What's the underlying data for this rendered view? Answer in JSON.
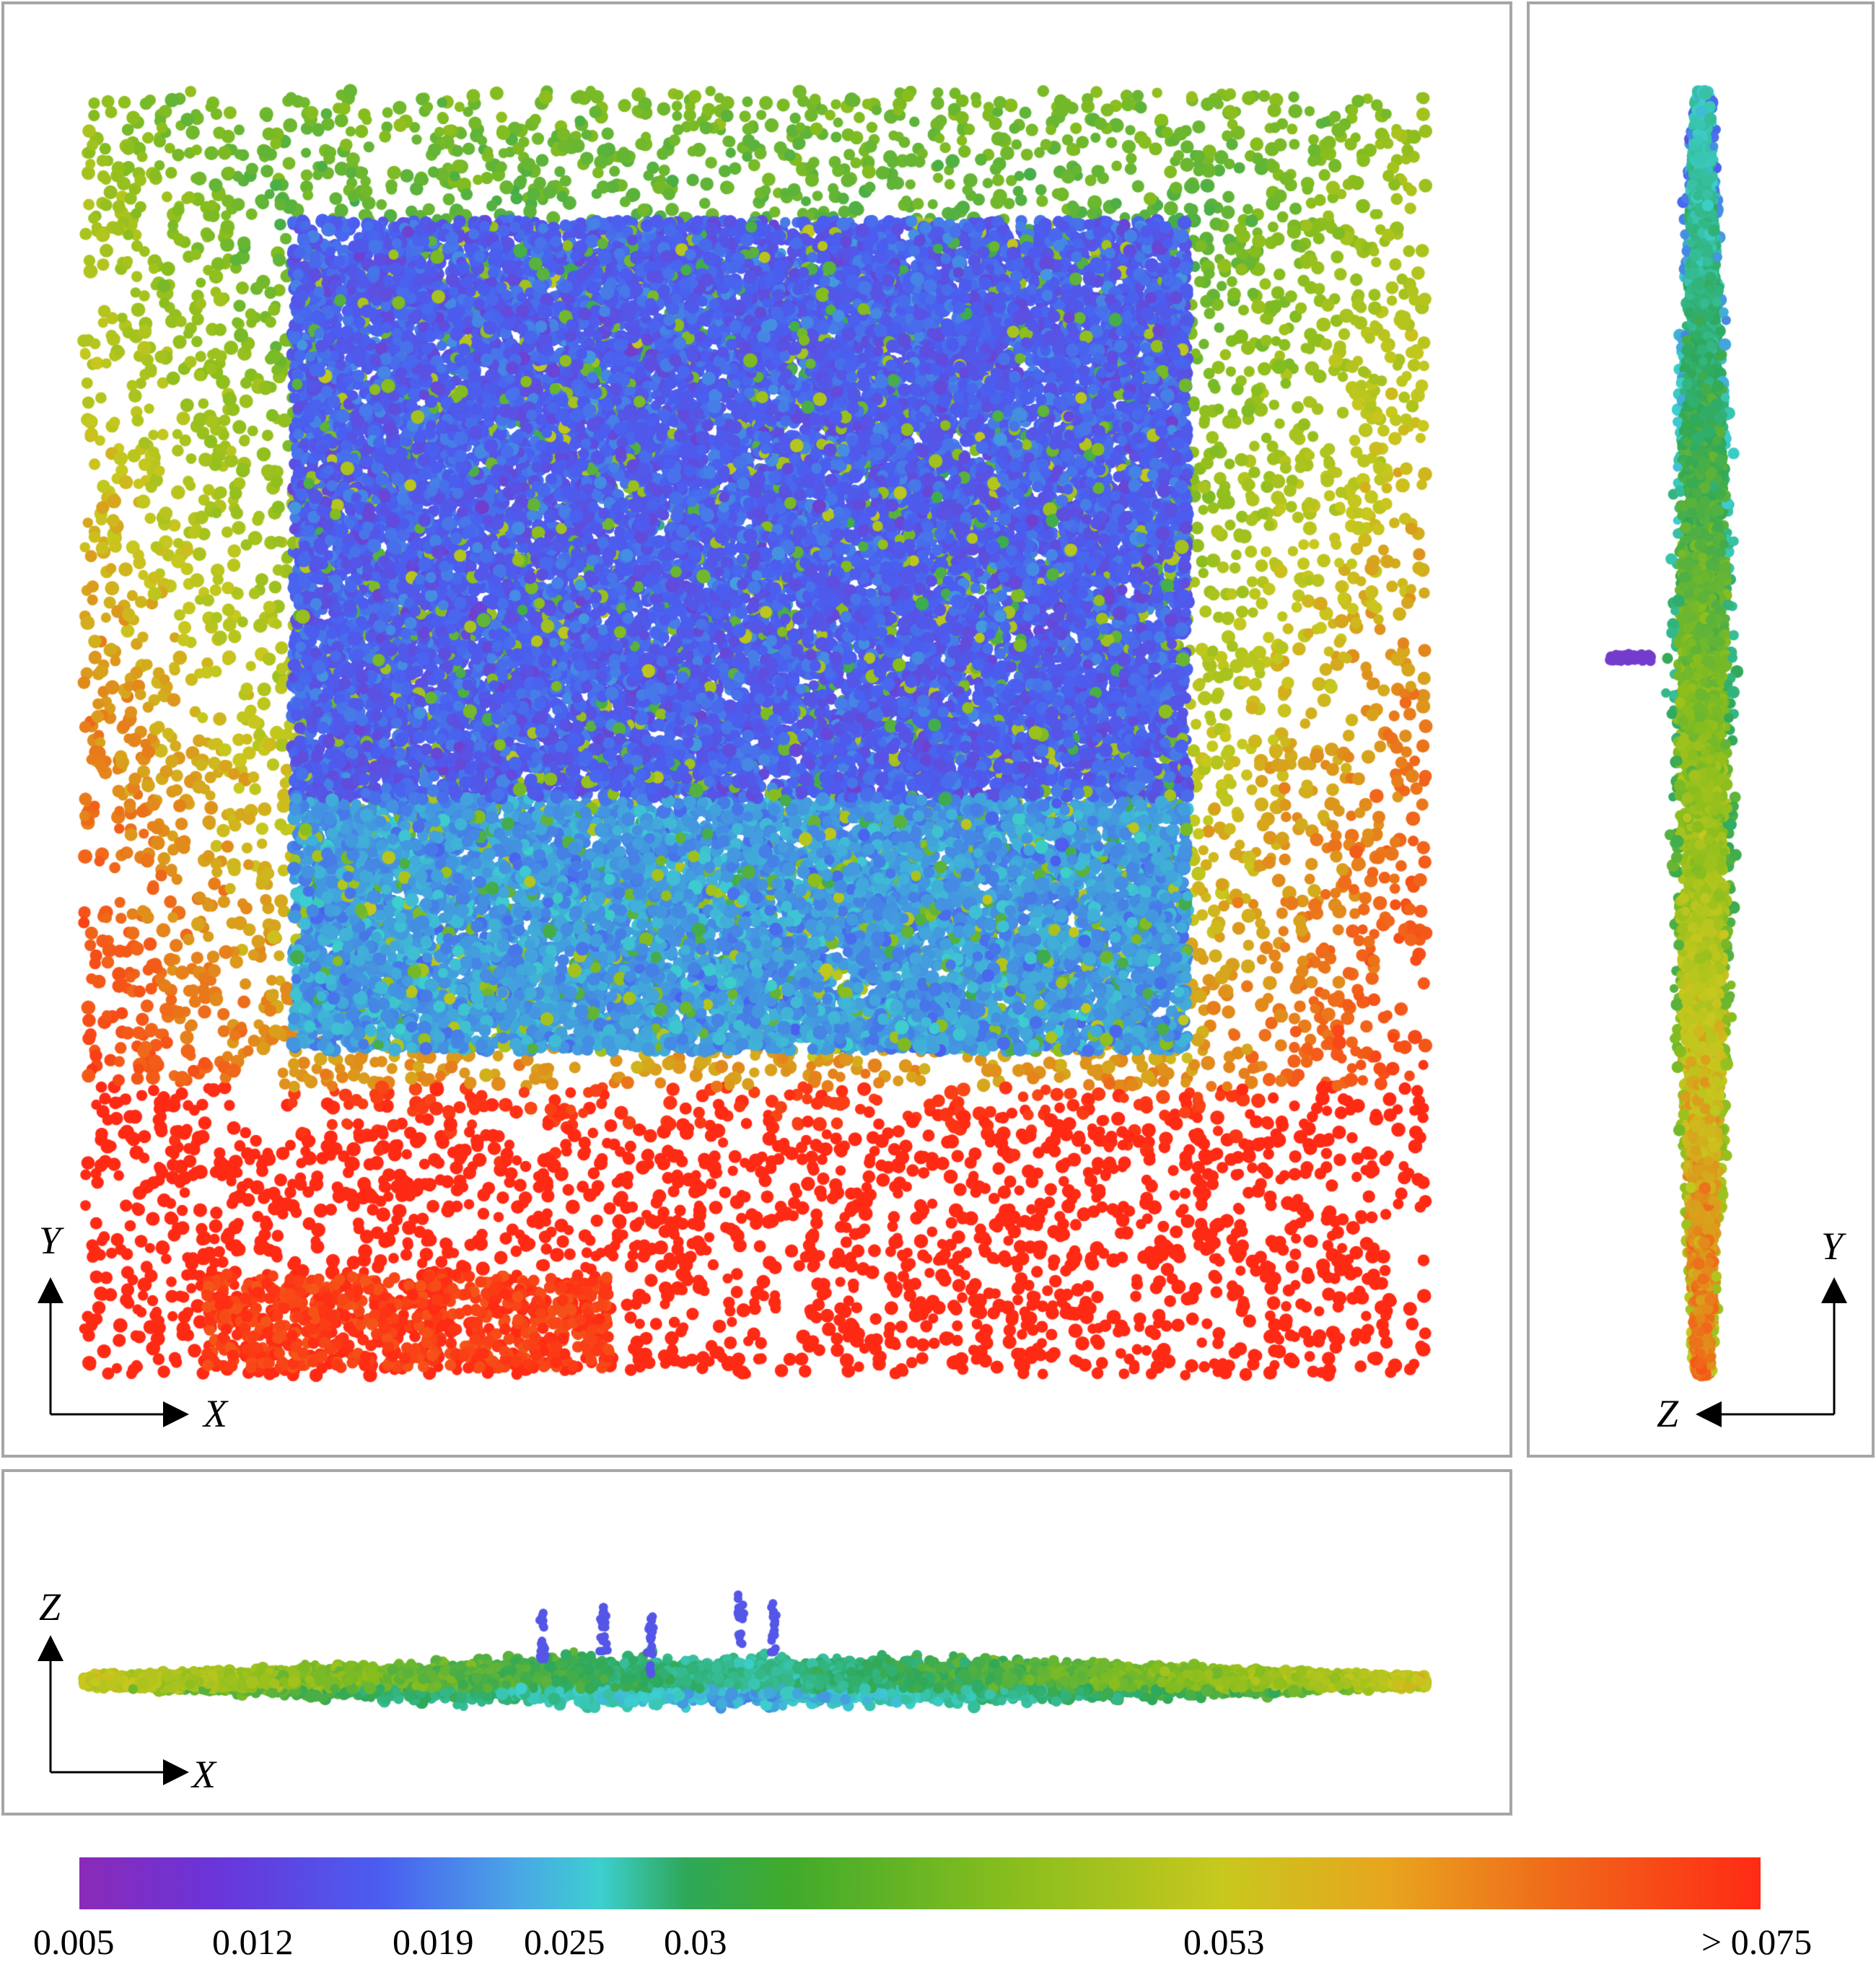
{
  "views": {
    "top": {
      "axis_h": "X",
      "axis_v": "Y"
    },
    "side": {
      "axis_h": "Z",
      "axis_v": "Y"
    },
    "front": {
      "axis_h": "X",
      "axis_v": "Z"
    }
  },
  "colorbar": {
    "ticks": [
      "0.005",
      "0.012",
      "0.019",
      "0.025",
      "0.03",
      "0.053",
      "> 0.075"
    ],
    "colors": [
      "#8a2ab8",
      "#4a5ef0",
      "#3dcfcf",
      "#2ea85a",
      "#86bd1e",
      "#c8c81e",
      "#f0681a",
      "#ff2a14"
    ]
  }
}
